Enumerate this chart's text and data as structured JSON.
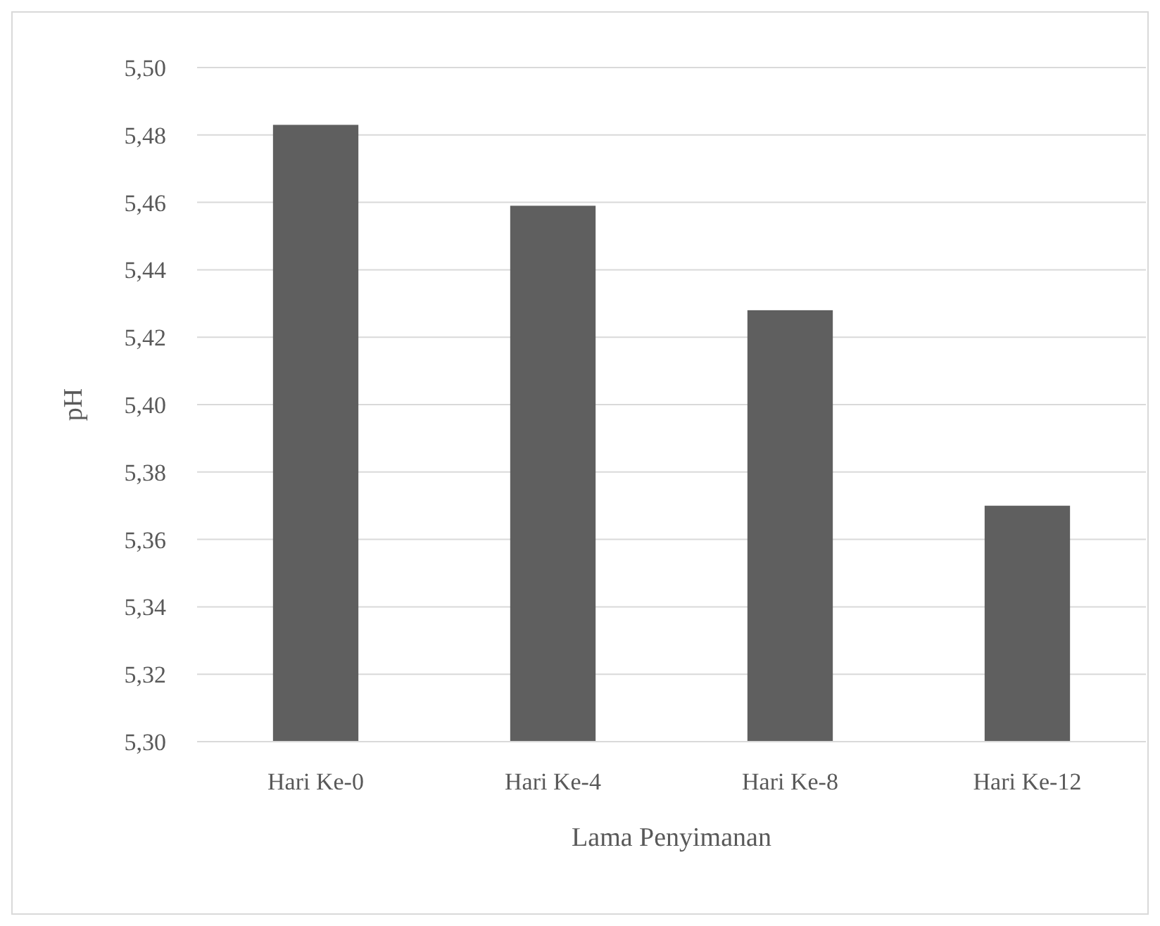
{
  "chart_data": {
    "type": "bar",
    "xlabel": "Lama Penyimanan",
    "ylabel": "pH",
    "categories": [
      "Hari Ke-0",
      "Hari Ke-4",
      "Hari Ke-8",
      "Hari Ke-12"
    ],
    "values": [
      5.483,
      5.459,
      5.428,
      5.37
    ],
    "color": "#5f5f5f",
    "ylim": [
      5.3,
      5.5
    ],
    "yticks": [
      {
        "value": 5.3,
        "label": "5,30"
      },
      {
        "value": 5.32,
        "label": "5,32"
      },
      {
        "value": 5.34,
        "label": "5,34"
      },
      {
        "value": 5.36,
        "label": "5,36"
      },
      {
        "value": 5.38,
        "label": "5,38"
      },
      {
        "value": 5.4,
        "label": "5,40"
      },
      {
        "value": 5.42,
        "label": "5,42"
      },
      {
        "value": 5.44,
        "label": "5,44"
      },
      {
        "value": 5.46,
        "label": "5,46"
      },
      {
        "value": 5.48,
        "label": "5,48"
      },
      {
        "value": 5.5,
        "label": "5,50"
      }
    ],
    "grid": "y"
  }
}
